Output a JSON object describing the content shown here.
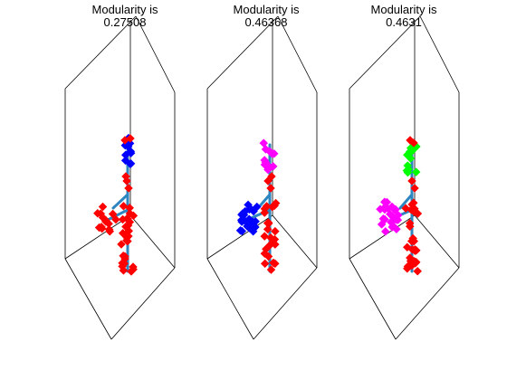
{
  "panels": [
    {
      "title_line1": "Modularity is",
      "title_line2": "0.27508",
      "node_colors": [
        "#ff0000",
        "#0000ff"
      ],
      "edge_color": "#2e86c1"
    },
    {
      "title_line1": "Modularity is",
      "title_line2": "0.46368",
      "node_colors": [
        "#ff0000",
        "#ff00ff",
        "#0000ff"
      ],
      "edge_color": "#2e86c1"
    },
    {
      "title_line1": "Modularity is",
      "title_line2": "0.4631",
      "node_colors": [
        "#ff0000",
        "#00ff00",
        "#ff00ff"
      ],
      "edge_color": "#2e86c1"
    }
  ]
}
